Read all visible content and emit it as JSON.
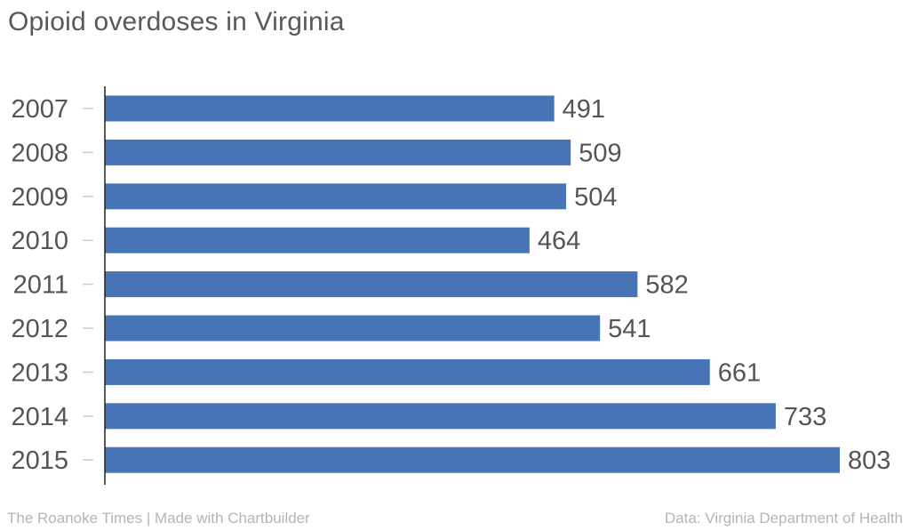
{
  "chart_data": {
    "type": "bar",
    "orientation": "horizontal",
    "title": "Opioid overdoses in Virginia",
    "categories": [
      "2007",
      "2008",
      "2009",
      "2010",
      "2011",
      "2012",
      "2013",
      "2014",
      "2015"
    ],
    "values": [
      491,
      509,
      504,
      464,
      582,
      541,
      661,
      733,
      803
    ],
    "xlabel": "",
    "ylabel": "",
    "xlim": [
      0,
      803
    ],
    "grid": false,
    "legend": "none",
    "bar_color": "#4674b7",
    "data_labels": true
  },
  "footer": {
    "credit": "The Roanoke Times | Made with Chartbuilder",
    "source": "Data: Virginia Department of Health"
  }
}
